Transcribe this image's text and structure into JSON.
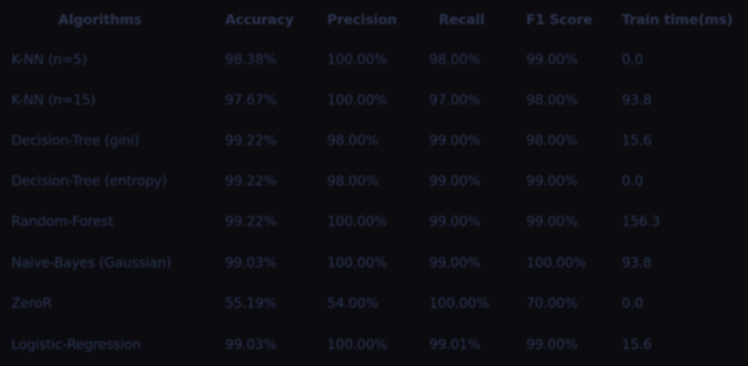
{
  "table": {
    "headers": [
      "Algorithms",
      "Accuracy",
      "Precision",
      "Recall",
      "F1 Score",
      "Train time(ms)"
    ],
    "rows": [
      [
        "K-NN (n=5)",
        "98.38%",
        "100.00%",
        "98.00%",
        "99.00%",
        "0.0"
      ],
      [
        "K-NN (n=15)",
        "97.67%",
        "100.00%",
        "97.00%",
        "98.00%",
        "93.8"
      ],
      [
        "Decision-Tree (gini)",
        "99.22%",
        "98.00%",
        "99.00%",
        "98.00%",
        "15.6"
      ],
      [
        "Decision-Tree (entropy)",
        "99.22%",
        "98.00%",
        "99.00%",
        "99.00%",
        "0.0"
      ],
      [
        "Random-Forest",
        "99.22%",
        "100.00%",
        "99.00%",
        "99.00%",
        "156.3"
      ],
      [
        "Naive-Bayes (Gaussian)",
        "99.03%",
        "100.00%",
        "99.00%",
        "100.00%",
        "93.8"
      ],
      [
        "ZeroR",
        "55.19%",
        "54.00%",
        "100.00%",
        "70.00%",
        "0.0"
      ],
      [
        "Logistic-Regression",
        "99.03%",
        "100.00%",
        "99.01%",
        "99.00%",
        "15.6"
      ]
    ]
  },
  "colors": {
    "background": "#0c0c10",
    "text": "#2a3352"
  }
}
